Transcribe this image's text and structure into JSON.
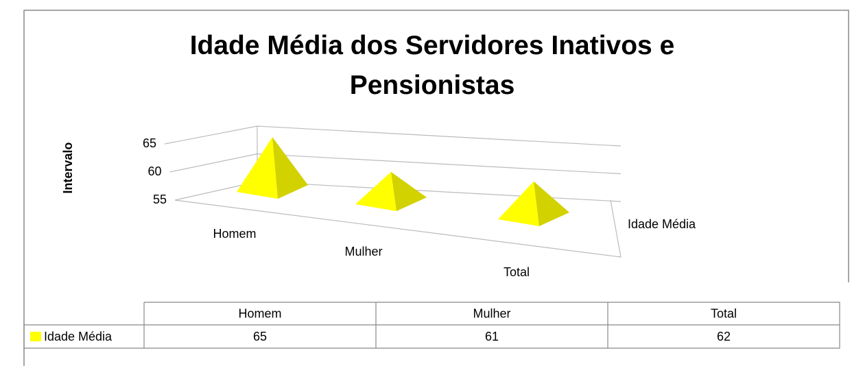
{
  "chart_data": {
    "type": "pyramid",
    "title": "Idade Média dos Servidores Inativos e Pensionistas",
    "y_label": "Intervalo",
    "categories": [
      "Homem",
      "Mulher",
      "Total"
    ],
    "series": [
      {
        "name": "Idade Média",
        "color": "#ffff00",
        "values": [
          65,
          61,
          62
        ]
      }
    ],
    "ylim": [
      55,
      65
    ],
    "yticks": [
      55,
      60,
      65
    ],
    "grid": true,
    "data_table": true
  }
}
